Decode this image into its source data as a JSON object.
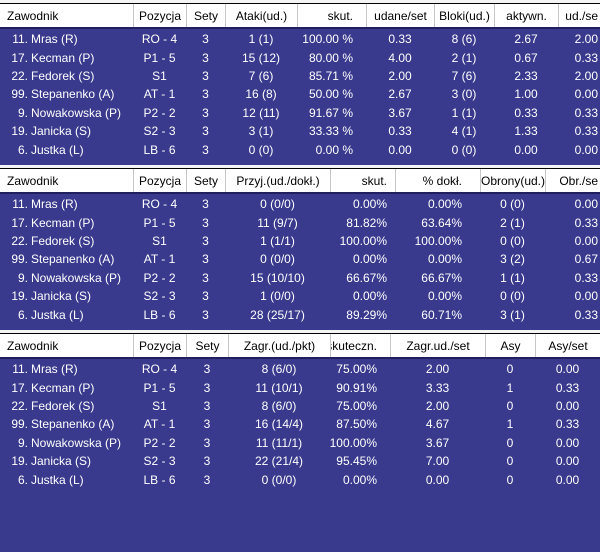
{
  "colors": {
    "body_background": "#39398D",
    "header_background": "#FFFFFF",
    "header_text": "#000000",
    "body_text": "#FFFFFF",
    "header_divider": "#C6C6C6",
    "header_top_line": "#000000",
    "header_bottom_line": "#20205E",
    "section_gap": "#F4F4F4"
  },
  "tables": [
    {
      "name": "attack-block-stats",
      "columns": [
        {
          "key": "zawodnik",
          "label": "Zawodnik"
        },
        {
          "key": "pozycja",
          "label": "Pozycja"
        },
        {
          "key": "sety",
          "label": "Sety"
        },
        {
          "key": "ataki-ud",
          "label": "Ataki(ud.)"
        },
        {
          "key": "skut",
          "label": "skut."
        },
        {
          "key": "udane-set",
          "label": "udane/set"
        },
        {
          "key": "bloki-ud",
          "label": "Bloki(ud.)"
        },
        {
          "key": "aktywn",
          "label": "aktywn."
        },
        {
          "key": "ud-set",
          "label": "ud./se"
        }
      ],
      "rows": [
        {
          "no": "11.",
          "name": "Mras (R)",
          "values": [
            "RO - 4",
            "3",
            "1 (1)",
            "100.00 %",
            "0.33",
            "8 (6)",
            "2.67",
            "2.00"
          ]
        },
        {
          "no": "17.",
          "name": "Kecman (P)",
          "values": [
            "P1 - 5",
            "3",
            "15 (12)",
            "80.00 %",
            "4.00",
            "2 (1)",
            "0.67",
            "0.33"
          ]
        },
        {
          "no": "22.",
          "name": "Fedorek (S)",
          "values": [
            "S1",
            "3",
            "7 (6)",
            "85.71 %",
            "2.00",
            "7 (6)",
            "2.33",
            "2.00"
          ]
        },
        {
          "no": "99.",
          "name": "Stepanenko (A)",
          "values": [
            "AT - 1",
            "3",
            "16 (8)",
            "50.00 %",
            "2.67",
            "3 (0)",
            "1.00",
            "0.00"
          ]
        },
        {
          "no": "9.",
          "name": "Nowakowska (P)",
          "values": [
            "P2 - 2",
            "3",
            "12 (11)",
            "91.67 %",
            "3.67",
            "1 (1)",
            "0.33",
            "0.33"
          ]
        },
        {
          "no": "19.",
          "name": "Janicka (S)",
          "values": [
            "S2 - 3",
            "3",
            "3 (1)",
            "33.33 %",
            "0.33",
            "4 (1)",
            "1.33",
            "0.33"
          ]
        },
        {
          "no": "6.",
          "name": "Justka (L)",
          "values": [
            "LB - 6",
            "3",
            "0 (0)",
            "0.00 %",
            "0.00",
            "0 (0)",
            "0.00",
            "0.00"
          ]
        }
      ]
    },
    {
      "name": "reception-defense-stats",
      "columns": [
        {
          "key": "zawodnik",
          "label": "Zawodnik"
        },
        {
          "key": "pozycja",
          "label": "Pozycja"
        },
        {
          "key": "sety",
          "label": "Sety"
        },
        {
          "key": "przyj-ud-dokl",
          "label": "Przyj.(ud./dokł.)"
        },
        {
          "key": "skut",
          "label": "skut."
        },
        {
          "key": "proc-dokl",
          "label": "% dokł."
        },
        {
          "key": "obrony-ud",
          "label": "Obrony(ud.)"
        },
        {
          "key": "obr-set",
          "label": "Obr./se"
        }
      ],
      "rows": [
        {
          "no": "11.",
          "name": "Mras (R)",
          "values": [
            "RO - 4",
            "3",
            "0 (0/0)",
            "0.00%",
            "0.00%",
            "0 (0)",
            "0.00"
          ]
        },
        {
          "no": "17.",
          "name": "Kecman (P)",
          "values": [
            "P1 - 5",
            "3",
            "11 (9/7)",
            "81.82%",
            "63.64%",
            "2 (1)",
            "0.33"
          ]
        },
        {
          "no": "22.",
          "name": "Fedorek (S)",
          "values": [
            "S1",
            "3",
            "1 (1/1)",
            "100.00%",
            "100.00%",
            "0 (0)",
            "0.00"
          ]
        },
        {
          "no": "99.",
          "name": "Stepanenko (A)",
          "values": [
            "AT - 1",
            "3",
            "0 (0/0)",
            "0.00%",
            "0.00%",
            "3 (2)",
            "0.67"
          ]
        },
        {
          "no": "9.",
          "name": "Nowakowska (P)",
          "values": [
            "P2 - 2",
            "3",
            "15 (10/10)",
            "66.67%",
            "66.67%",
            "1 (1)",
            "0.33"
          ]
        },
        {
          "no": "19.",
          "name": "Janicka (S)",
          "values": [
            "S2 - 3",
            "3",
            "1 (0/0)",
            "0.00%",
            "0.00%",
            "0 (0)",
            "0.00"
          ]
        },
        {
          "no": "6.",
          "name": "Justka (L)",
          "values": [
            "LB - 6",
            "3",
            "28 (25/17)",
            "89.29%",
            "60.71%",
            "3 (1)",
            "0.33"
          ]
        }
      ]
    },
    {
      "name": "serve-stats",
      "columns": [
        {
          "key": "zawodnik",
          "label": "Zawodnik"
        },
        {
          "key": "pozycja",
          "label": "Pozycja"
        },
        {
          "key": "sety",
          "label": "Sety"
        },
        {
          "key": "zagr-ud-pkt",
          "label": "Zagr.(ud./pkt)"
        },
        {
          "key": "skuteczn",
          "label": "skuteczn."
        },
        {
          "key": "zagr-ud-set",
          "label": "Zagr.ud./set"
        },
        {
          "key": "asy",
          "label": "Asy"
        },
        {
          "key": "asy-set",
          "label": "Asy/set"
        }
      ],
      "rows": [
        {
          "no": "11.",
          "name": "Mras (R)",
          "values": [
            "RO - 4",
            "3",
            "8 (6/0)",
            "75.00%",
            "2.00",
            "0",
            "0.00"
          ]
        },
        {
          "no": "17.",
          "name": "Kecman (P)",
          "values": [
            "P1 - 5",
            "3",
            "11 (10/1)",
            "90.91%",
            "3.33",
            "1",
            "0.33"
          ]
        },
        {
          "no": "22.",
          "name": "Fedorek (S)",
          "values": [
            "S1",
            "3",
            "8 (6/0)",
            "75.00%",
            "2.00",
            "0",
            "0.00"
          ]
        },
        {
          "no": "99.",
          "name": "Stepanenko (A)",
          "values": [
            "AT - 1",
            "3",
            "16 (14/4)",
            "87.50%",
            "4.67",
            "1",
            "0.33"
          ]
        },
        {
          "no": "9.",
          "name": "Nowakowska (P)",
          "values": [
            "P2 - 2",
            "3",
            "11 (11/1)",
            "100.00%",
            "3.67",
            "0",
            "0.00"
          ]
        },
        {
          "no": "19.",
          "name": "Janicka (S)",
          "values": [
            "S2 - 3",
            "3",
            "22 (21/4)",
            "95.45%",
            "7.00",
            "0",
            "0.00"
          ]
        },
        {
          "no": "6.",
          "name": "Justka (L)",
          "values": [
            "LB - 6",
            "3",
            "0 (0/0)",
            "0.00%",
            "0.00",
            "0",
            "0.00"
          ]
        }
      ]
    }
  ]
}
